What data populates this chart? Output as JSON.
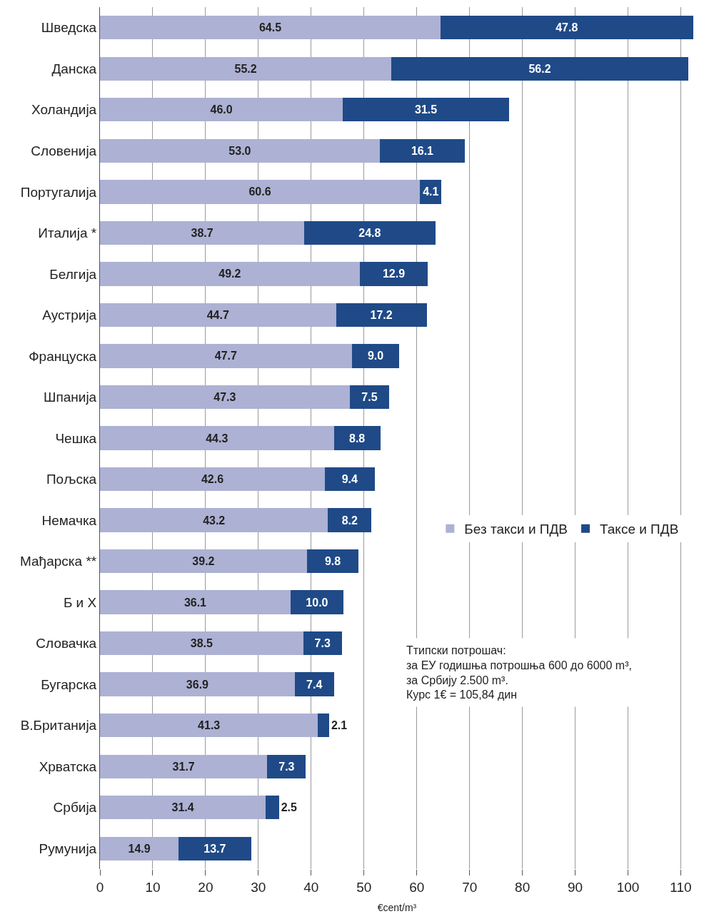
{
  "chart_data": {
    "type": "bar",
    "orientation": "horizontal",
    "stacked": true,
    "grid": "x",
    "legend": "right",
    "xlabel": "€cent/m³",
    "categories": [
      "Шведска",
      "Данска",
      "Холандија",
      "Словенија",
      "Португалија",
      "Италија *",
      "Белгија",
      "Аустрија",
      "Француска",
      "Шпанија",
      "Чешка",
      "Пољска",
      "Немачка",
      "Мађарска **",
      "Б и Х",
      "Словачка",
      "Бугарска",
      "В.Британија",
      "Хрватска",
      "Србија",
      "Румунија"
    ],
    "series": [
      {
        "name": "Без такси и ПДВ",
        "color": "#adb1d3",
        "values": [
          64.5,
          55.2,
          46.0,
          53.0,
          60.6,
          38.7,
          49.2,
          44.7,
          47.7,
          47.3,
          44.3,
          42.6,
          43.2,
          39.2,
          36.1,
          38.5,
          36.9,
          41.3,
          31.7,
          31.4,
          14.9
        ],
        "value_labels": [
          "64.5",
          "55.2",
          "46.0",
          "53.0",
          "60.6",
          "38.7",
          "49.2",
          "44.7",
          "47.7",
          "47.3",
          "44.3",
          "42.6",
          "43.2",
          "39.2",
          "36.1",
          "38.5",
          "36.9",
          "41.3",
          "31.7",
          "31.4",
          "14.9"
        ]
      },
      {
        "name": "Таксе и ПДВ",
        "color": "#1f4a87",
        "values": [
          47.8,
          56.2,
          31.5,
          16.1,
          4.1,
          24.8,
          12.9,
          17.2,
          9.0,
          7.5,
          8.8,
          9.4,
          8.2,
          9.8,
          10.0,
          7.3,
          7.4,
          2.1,
          7.3,
          2.5,
          13.7
        ],
        "value_labels": [
          "47.8",
          "56.2",
          "31.5",
          "16.1",
          "4.1",
          "24.8",
          "12.9",
          "17.2",
          "9.0",
          "7.5",
          "8.8",
          "9.4",
          "8.2",
          "9.8",
          "10.0",
          "7.3",
          "7.4",
          "2.1",
          "7.3",
          "2.5",
          "13.7"
        ]
      }
    ],
    "xlim": [
      0,
      112.5
    ],
    "xticks": [
      0,
      10,
      20,
      30,
      40,
      50,
      60,
      70,
      80,
      90,
      100,
      110
    ],
    "annotations": [
      "Ттипски потрошач:\nза ЕУ годишња потрошња 600 до 6000 m³,\nза Србију 2.500 m³.\nКурс 1€ = 105,84 дин"
    ]
  }
}
